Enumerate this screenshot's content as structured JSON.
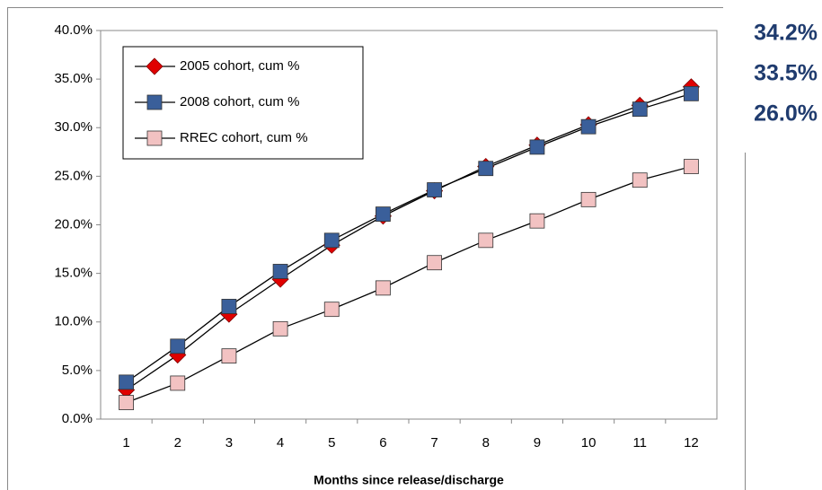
{
  "chart_data": {
    "type": "line",
    "x_label": "Months since release/discharge",
    "categories": [
      "1",
      "2",
      "3",
      "4",
      "5",
      "6",
      "7",
      "8",
      "9",
      "10",
      "11",
      "12"
    ],
    "series": [
      {
        "name": "2005 cohort, cum %",
        "color": "#e00000",
        "marker": "diamond",
        "values": [
          3.0,
          6.6,
          10.8,
          14.4,
          17.9,
          20.9,
          23.5,
          26.0,
          28.2,
          30.3,
          32.3,
          34.2
        ]
      },
      {
        "name": "2008 cohort, cum %",
        "color": "#3a5f9a",
        "marker": "square",
        "values": [
          3.8,
          7.5,
          11.6,
          15.2,
          18.4,
          21.1,
          23.6,
          25.8,
          28.0,
          30.1,
          31.9,
          33.5
        ]
      },
      {
        "name": "RREC cohort, cum %",
        "color": "#f2c2c2",
        "marker": "square",
        "values": [
          1.7,
          3.7,
          6.5,
          9.3,
          11.3,
          13.5,
          16.1,
          18.4,
          20.4,
          22.6,
          24.6,
          26.0
        ]
      }
    ],
    "ylim": [
      0,
      40
    ],
    "yticks": [
      {
        "value": 0,
        "label": "0.0%"
      },
      {
        "value": 5,
        "label": "5.0%"
      },
      {
        "value": 10,
        "label": "10.0%"
      },
      {
        "value": 15,
        "label": "15.0%"
      },
      {
        "value": 20,
        "label": "20.0%"
      },
      {
        "value": 25,
        "label": "25.0%"
      },
      {
        "value": 30,
        "label": "30.0%"
      },
      {
        "value": 35,
        "label": "35.0%"
      },
      {
        "value": 40,
        "label": "40.0%"
      }
    ],
    "grid": false,
    "legend": "upper left",
    "annotations": [
      "34.2%",
      "33.5%",
      "26.0%"
    ]
  }
}
